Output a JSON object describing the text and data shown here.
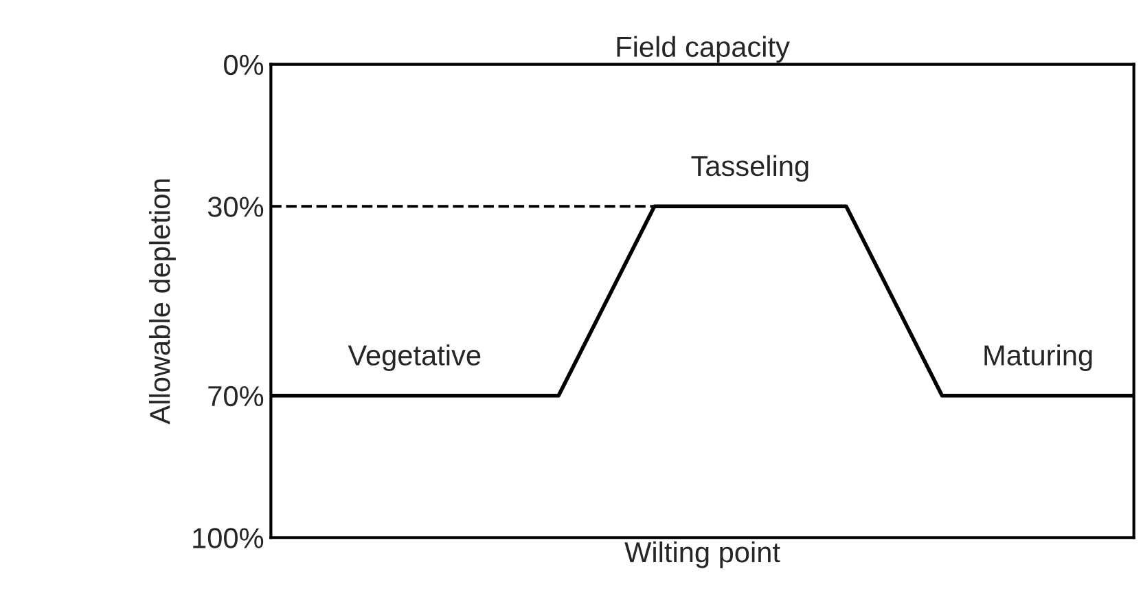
{
  "chart_data": {
    "type": "line",
    "title": "Field capacity",
    "xlabel": "Wilting point",
    "ylabel": "Allowable depletion",
    "categories": [
      null,
      null,
      null,
      null,
      null,
      null,
      null,
      null,
      null,
      null
    ],
    "series": [
      {
        "color": "#000000",
        "values": [
          70,
          70,
          70,
          70,
          30,
          30,
          30,
          70,
          70,
          70
        ]
      }
    ],
    "ylim": [
      100,
      0
    ],
    "yticks": [
      {
        "value": 0,
        "label": "0%"
      },
      {
        "value": 30,
        "label": "30%"
      },
      {
        "value": 70,
        "label": "70%"
      },
      {
        "value": 100,
        "label": "100%"
      }
    ],
    "tick_labels": "y",
    "ref_lines": [
      {
        "axis": "y",
        "value": 30,
        "color": "#000000",
        "line_style": "dashed"
      }
    ],
    "annotations": [
      "Vegetative",
      "Tasseling",
      "Maturing"
    ],
    "grid": false,
    "legend": false,
    "marker": "none",
    "line_style": "solid"
  }
}
